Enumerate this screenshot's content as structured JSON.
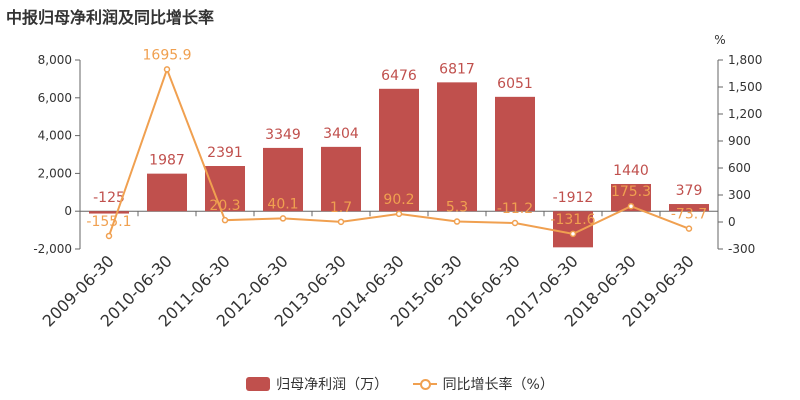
{
  "chart_data": {
    "type": "bar",
    "title": "中报归母净利润及同比增长率",
    "categories": [
      "2009-06-30",
      "2010-06-30",
      "2011-06-30",
      "2012-06-30",
      "2013-06-30",
      "2014-06-30",
      "2015-06-30",
      "2016-06-30",
      "2017-06-30",
      "2018-06-30",
      "2019-06-30"
    ],
    "series": [
      {
        "name": "归母净利润（万）",
        "type": "bar",
        "axis": "left",
        "color": "#c0504d",
        "values": [
          -125,
          1987,
          2391,
          3349,
          3404,
          6476,
          6817,
          6051,
          -1912,
          1440,
          379
        ],
        "labels": [
          "-125",
          "1987",
          "2391",
          "3349",
          "3404",
          "6476",
          "6817",
          "6051",
          "-1912",
          "1440",
          "379"
        ]
      },
      {
        "name": "同比增长率（%）",
        "type": "line",
        "axis": "right",
        "color": "#f0a050",
        "values": [
          -155.1,
          1695.9,
          20.3,
          40.1,
          1.7,
          90.2,
          5.3,
          -11.2,
          -131.6,
          175.3,
          -73.7
        ],
        "labels": [
          "-155.1",
          "1695.9",
          "20.3",
          "40.1",
          "1.7",
          "90.2",
          "5.3",
          "-11.2",
          "-131.6",
          "175.3",
          "-73.7"
        ]
      }
    ],
    "y_left": {
      "min": -2000,
      "max": 8000,
      "ticks": [
        -2000,
        0,
        2000,
        4000,
        6000,
        8000
      ],
      "tick_labels": [
        "-2,000",
        "0",
        "2,000",
        "4,000",
        "6,000",
        "8,000"
      ]
    },
    "y_right": {
      "label": "%",
      "min": -300,
      "max": 1800,
      "ticks": [
        -300,
        0,
        300,
        600,
        900,
        1200,
        1500,
        1800
      ],
      "tick_labels": [
        "-300",
        "0",
        "300",
        "600",
        "900",
        "1,200",
        "1,500",
        "1,800"
      ]
    },
    "legend_position": "bottom-center",
    "grid": false
  }
}
